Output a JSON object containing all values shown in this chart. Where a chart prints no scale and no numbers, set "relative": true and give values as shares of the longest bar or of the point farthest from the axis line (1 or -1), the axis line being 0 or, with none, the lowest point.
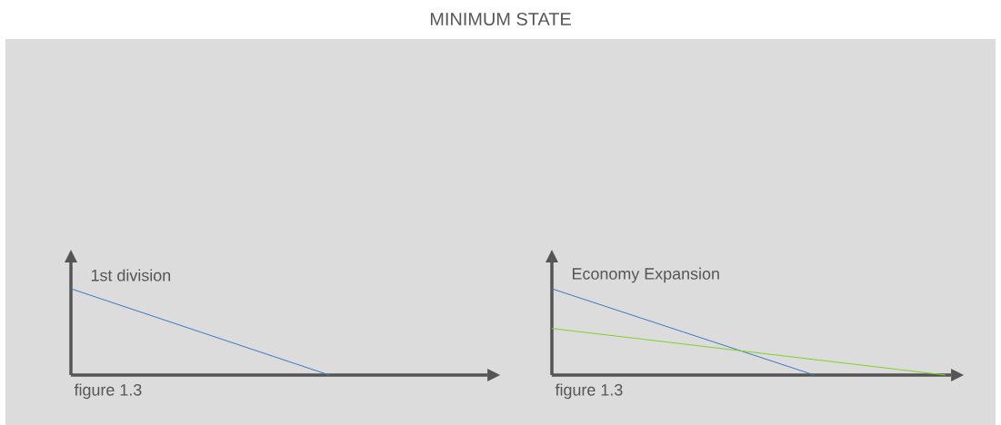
{
  "chart_data": [
    {
      "type": "line",
      "title": "MINIMUM STATE",
      "ylabel": "1st division",
      "relative": true,
      "categories": [
        null,
        null,
        null
      ],
      "tick_labels": false,
      "annotations": [
        "figure 1.3"
      ],
      "series": [
        {
          "color": "#3a78c0",
          "values": [
            1,
            0.5,
            0
          ]
        }
      ]
    },
    {
      "type": "line",
      "ylabel": "Economy Expansion",
      "relative": true,
      "categories": [
        null,
        null,
        null,
        null
      ],
      "tick_labels": false,
      "annotations": [
        "figure 1.3"
      ],
      "series": [
        {
          "color": "#3a78c0",
          "values": [
            1,
            0.5,
            0,
            null
          ]
        },
        {
          "color": "#7ed321",
          "values": [
            0.54,
            0.36,
            0.18,
            0
          ]
        }
      ]
    }
  ]
}
